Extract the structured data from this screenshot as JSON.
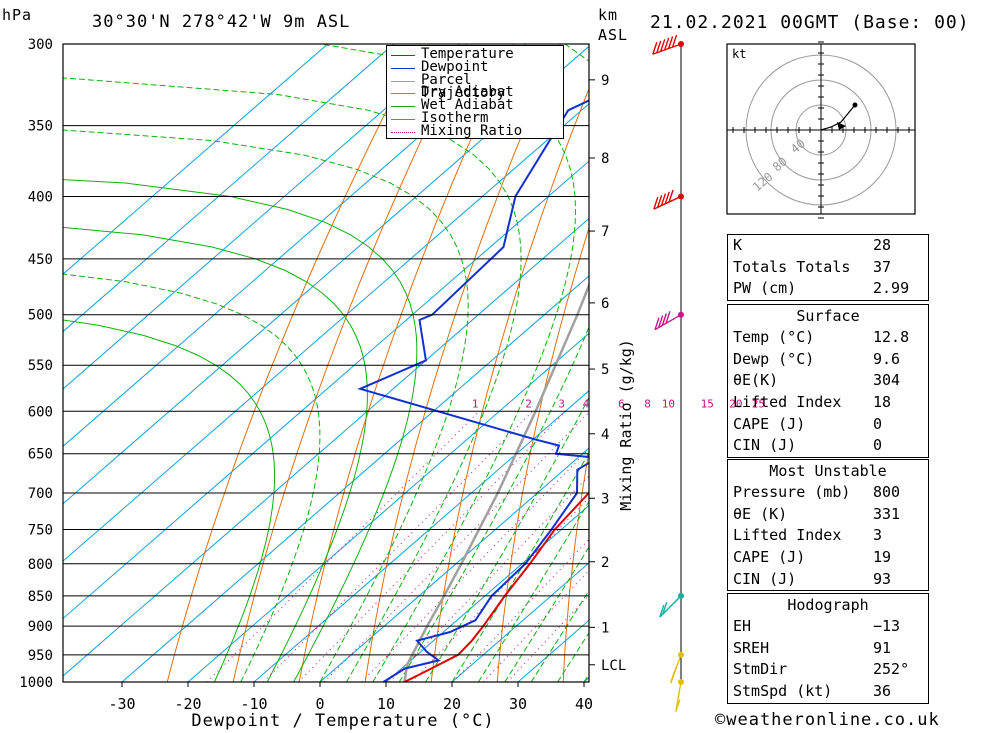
{
  "header": {
    "left_unit": "hPa",
    "location": "30°30'N  278°42'W  9m  ASL",
    "km_unit": "km",
    "asl_unit": "ASL",
    "datetime": "21.02.2021  00GMT  (Base: 00)"
  },
  "credit": "©weatheronline.co.uk",
  "chart_data": {
    "type": "skew-t log-p sounding",
    "xlabel": "Dewpoint / Temperature (°C)",
    "ylabel_right": "Mixing Ratio (g/kg)",
    "pressure_levels": [
      300,
      350,
      400,
      450,
      500,
      550,
      600,
      650,
      700,
      750,
      800,
      850,
      900,
      950,
      1000
    ],
    "temperature_ticks": [
      -30,
      -20,
      -10,
      0,
      10,
      20,
      30,
      40
    ],
    "xlim": [
      -40,
      40
    ],
    "ylim_hpa": [
      1000,
      300
    ],
    "height_ticks_km": [
      {
        "label": "9",
        "p": 321
      },
      {
        "label": "8",
        "p": 372
      },
      {
        "label": "7",
        "p": 427
      },
      {
        "label": "6",
        "p": 489
      },
      {
        "label": "5",
        "p": 554
      },
      {
        "label": "4",
        "p": 626
      },
      {
        "label": "3",
        "p": 707
      },
      {
        "label": "2",
        "p": 797
      },
      {
        "label": "1",
        "p": 902
      },
      {
        "label": "LCL",
        "p": 968
      }
    ],
    "mixing_ratio_labels": [
      "1",
      "2",
      "3",
      "4",
      "6",
      "8",
      "10",
      "15",
      "20",
      "25"
    ],
    "mixing_ratio_values": [
      1,
      2,
      3,
      4,
      6,
      8,
      10,
      15,
      20,
      25
    ],
    "temperature": [
      {
        "p": 1000,
        "t": 12.8
      },
      {
        "p": 975,
        "t": 14.5
      },
      {
        "p": 950,
        "t": 16.2
      },
      {
        "p": 925,
        "t": 15.8
      },
      {
        "p": 900,
        "t": 15.0
      },
      {
        "p": 850,
        "t": 13.0
      },
      {
        "p": 800,
        "t": 11.2
      },
      {
        "p": 750,
        "t": 9.0
      },
      {
        "p": 700,
        "t": 7.8
      },
      {
        "p": 650,
        "t": 5.0
      },
      {
        "p": 600,
        "t": 2.0
      },
      {
        "p": 550,
        "t": -1.0
      },
      {
        "p": 500,
        "t": -4.0
      },
      {
        "p": 450,
        "t": -10.0
      },
      {
        "p": 400,
        "t": -16.5
      },
      {
        "p": 350,
        "t": -24.0
      },
      {
        "p": 310,
        "t": -30.5
      },
      {
        "p": 300,
        "t": -32.0
      }
    ],
    "dewpoint": [
      {
        "p": 1000,
        "t": 9.6
      },
      {
        "p": 975,
        "t": 10.5
      },
      {
        "p": 960,
        "t": 14.2
      },
      {
        "p": 945,
        "t": 11.0
      },
      {
        "p": 925,
        "t": 7.5
      },
      {
        "p": 910,
        "t": 11.0
      },
      {
        "p": 890,
        "t": 12.8
      },
      {
        "p": 850,
        "t": 11.0
      },
      {
        "p": 800,
        "t": 10.5
      },
      {
        "p": 750,
        "t": 8.5
      },
      {
        "p": 700,
        "t": 6.0
      },
      {
        "p": 670,
        "t": 2.0
      },
      {
        "p": 655,
        "t": 3.0
      },
      {
        "p": 650,
        "t": -4.0
      },
      {
        "p": 640,
        "t": -5.0
      },
      {
        "p": 633,
        "t": -9.5
      },
      {
        "p": 575,
        "t": -45.0
      },
      {
        "p": 545,
        "t": -40.0
      },
      {
        "p": 505,
        "t": -48.0
      },
      {
        "p": 500,
        "t": -47.0
      },
      {
        "p": 440,
        "t": -48.0
      },
      {
        "p": 400,
        "t": -55.0
      },
      {
        "p": 340,
        "t": -62.0
      },
      {
        "p": 323,
        "t": -58.0
      },
      {
        "p": 310,
        "t": -40.0
      },
      {
        "p": 303,
        "t": -55.0
      },
      {
        "p": 300,
        "t": -50.0
      }
    ],
    "parcel": [
      {
        "p": 1000,
        "t": 12.8
      },
      {
        "p": 968,
        "t": 10.2
      },
      {
        "p": 900,
        "t": 6.5
      },
      {
        "p": 850,
        "t": 3.8
      },
      {
        "p": 800,
        "t": 0.8
      },
      {
        "p": 700,
        "t": -6.0
      },
      {
        "p": 600,
        "t": -14.5
      },
      {
        "p": 500,
        "t": -25.0
      },
      {
        "p": 400,
        "t": -38.5
      },
      {
        "p": 300,
        "t": -56.0
      }
    ],
    "wind_barbs": [
      {
        "p": 300,
        "dir": 250,
        "speed_kt": 65
      },
      {
        "p": 400,
        "dir": 245,
        "speed_kt": 45
      },
      {
        "p": 500,
        "dir": 240,
        "speed_kt": 40
      },
      {
        "p": 850,
        "dir": 225,
        "speed_kt": 20
      },
      {
        "p": 950,
        "dir": 200,
        "speed_kt": 15
      },
      {
        "p": 1000,
        "dir": 190,
        "speed_kt": 10
      }
    ],
    "legend": {
      "position": "top-right",
      "entries": [
        {
          "name": "Temperature",
          "color": "#e00000",
          "style": "solid"
        },
        {
          "name": "Dewpoint",
          "color": "#1030d0",
          "style": "solid"
        },
        {
          "name": "Parcel Trajectory",
          "color": "#a0a0a0",
          "style": "solid"
        },
        {
          "name": "Dry Adiabat",
          "color": "#e07010",
          "style": "solid"
        },
        {
          "name": "Wet Adiabat",
          "color": "#10b010",
          "style": "solid"
        },
        {
          "name": "Isotherm",
          "color": "#10a0e0",
          "style": "solid"
        },
        {
          "name": "Mixing Ratio",
          "color": "#c0108a",
          "style": "dotted"
        }
      ]
    },
    "hodograph": {
      "unit_label": "kt",
      "ring_labels": [
        "40",
        "80",
        "120"
      ],
      "points": [
        {
          "u": 0,
          "v": 0
        },
        {
          "u": 10,
          "v": 3
        },
        {
          "u": 20,
          "v": 8
        },
        {
          "u": 34,
          "v": 25
        }
      ]
    }
  },
  "indices": [
    {
      "label": "K",
      "value": "28"
    },
    {
      "label": "Totals Totals",
      "value": "37"
    },
    {
      "label": "PW (cm)",
      "value": "2.99"
    }
  ],
  "surface": {
    "title": "Surface",
    "rows": [
      {
        "label": "Temp (°C)",
        "value": "12.8"
      },
      {
        "label": "Dewp (°C)",
        "value": "9.6"
      },
      {
        "label": "θE(K)",
        "value": "304"
      },
      {
        "label": "Lifted Index",
        "value": "18"
      },
      {
        "label": "CAPE (J)",
        "value": "0"
      },
      {
        "label": "CIN (J)",
        "value": "0"
      }
    ]
  },
  "most_unstable": {
    "title": "Most Unstable",
    "rows": [
      {
        "label": "Pressure (mb)",
        "value": "800"
      },
      {
        "label": "θE (K)",
        "value": "331"
      },
      {
        "label": "Lifted Index",
        "value": "3"
      },
      {
        "label": "CAPE (J)",
        "value": "19"
      },
      {
        "label": "CIN (J)",
        "value": "93"
      }
    ]
  },
  "hodograph_table": {
    "title": "Hodograph",
    "rows": [
      {
        "label": "EH",
        "value": "−13"
      },
      {
        "label": "SREH",
        "value": "91"
      },
      {
        "label": "StmDir",
        "value": "252°"
      },
      {
        "label": "StmSpd (kt)",
        "value": "36"
      }
    ]
  }
}
